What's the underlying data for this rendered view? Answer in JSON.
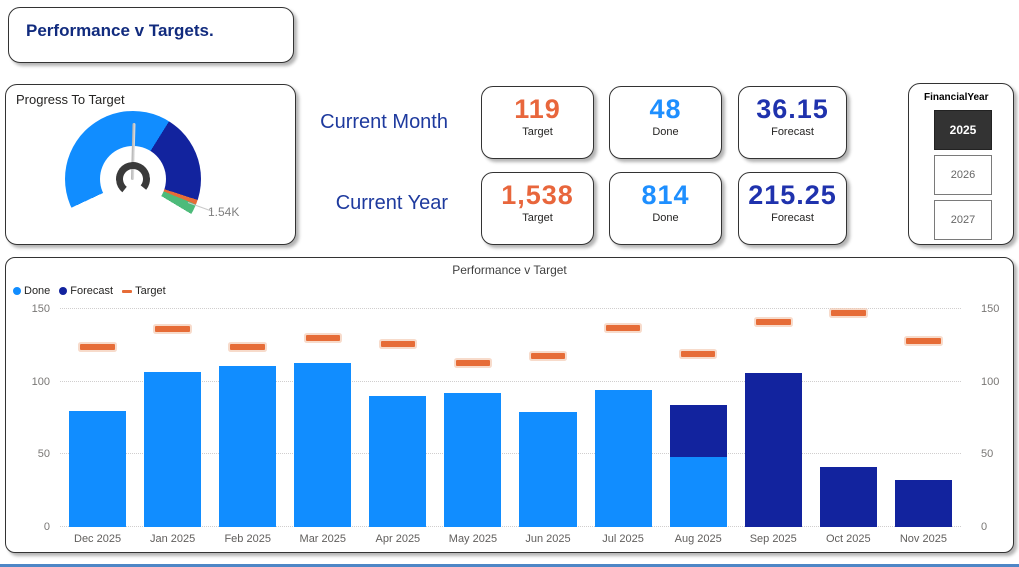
{
  "page_title": {
    "text": "Performance v Targets."
  },
  "gauge": {
    "title": "Progress To Target",
    "max_label": "1.54K",
    "start_deg": -115,
    "segments": [
      {
        "name": "done",
        "color": "#118DFF",
        "sweep_deg": 147
      },
      {
        "name": "forecast",
        "color": "#12239E",
        "sweep_deg": 76
      },
      {
        "name": "target-marker",
        "color": "#E66C37",
        "sweep_deg": 4
      },
      {
        "name": "remaining",
        "color": "#4DBB7A",
        "sweep_deg": 9
      }
    ]
  },
  "kpi": {
    "rows": [
      {
        "label": "Current Month",
        "cards": [
          {
            "value": "119",
            "label": "Target",
            "color": "#E8663C"
          },
          {
            "value": "48",
            "label": "Done",
            "color": "#1E8FFF"
          },
          {
            "value": "36.15",
            "label": "Forecast",
            "color": "#1F32AD"
          }
        ]
      },
      {
        "label": "Current Year",
        "cards": [
          {
            "value": "1,538",
            "label": "Target",
            "color": "#E8663C"
          },
          {
            "value": "814",
            "label": "Done",
            "color": "#1E8FFF"
          },
          {
            "value": "215.25",
            "label": "Forecast",
            "color": "#1F32AD"
          }
        ]
      }
    ]
  },
  "slicer": {
    "title": "FinancialYear",
    "options": [
      {
        "label": "2025",
        "selected": true
      },
      {
        "label": "2026",
        "selected": false
      },
      {
        "label": "2027",
        "selected": false
      }
    ]
  },
  "chart_data": {
    "type": "bar",
    "title": "Performance v Target",
    "categories": [
      "Dec 2025",
      "Jan 2025",
      "Feb 2025",
      "Mar 2025",
      "Apr 2025",
      "May 2025",
      "Jun 2025",
      "Jul 2025",
      "Aug 2025",
      "Sep 2025",
      "Oct 2025",
      "Nov 2025"
    ],
    "series": [
      {
        "name": "Done",
        "type": "column",
        "color": "#118DFF",
        "values": [
          80,
          107,
          111,
          113,
          90,
          92,
          79,
          94,
          48,
          0,
          0,
          0
        ]
      },
      {
        "name": "Forecast",
        "type": "column-stacked",
        "color": "#12239E",
        "values": [
          0,
          0,
          0,
          0,
          0,
          0,
          0,
          0,
          36.15,
          106,
          41,
          32.1
        ]
      },
      {
        "name": "Target",
        "type": "dash-marker",
        "color": "#E66C37",
        "values": [
          124,
          136,
          124,
          130,
          126,
          113,
          118,
          137,
          119,
          141,
          147,
          128
        ]
      }
    ],
    "xlabel": "",
    "ylabel": "",
    "y_ticks": [
      0,
      50,
      100,
      150
    ],
    "ylim": [
      0,
      150
    ],
    "grid": "dotted horizontal",
    "legend_position": "top-left",
    "value_axes": "left and right"
  }
}
